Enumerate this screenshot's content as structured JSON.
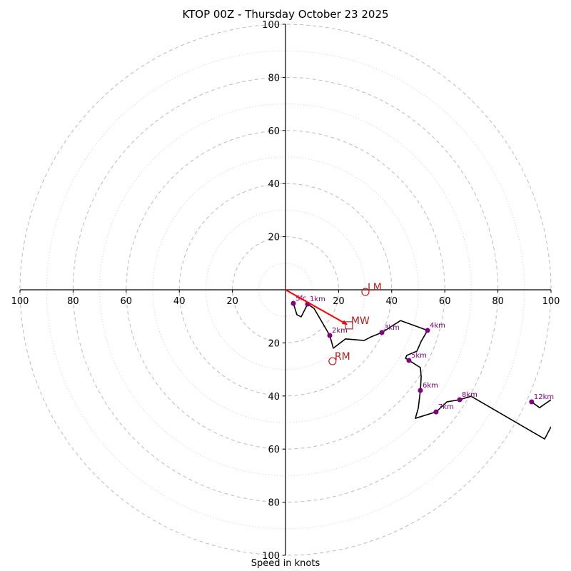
{
  "chart_data": {
    "type": "line",
    "title": "KTOP 00Z - Thursday October 23 2025",
    "xlabel": "Speed in knots",
    "ylabel": "",
    "xlim": [
      -100,
      100
    ],
    "ylim": [
      -100,
      100
    ],
    "grid": true,
    "rings_major": [
      20,
      40,
      60,
      80,
      100
    ],
    "rings_minor": [
      10,
      30,
      50,
      70,
      90
    ],
    "x_ticks": [
      {
        "v": -100,
        "label": "100"
      },
      {
        "v": -80,
        "label": "80"
      },
      {
        "v": -60,
        "label": "60"
      },
      {
        "v": -40,
        "label": "40"
      },
      {
        "v": -20,
        "label": "20"
      },
      {
        "v": 20,
        "label": "20"
      },
      {
        "v": 40,
        "label": "40"
      },
      {
        "v": 60,
        "label": "60"
      },
      {
        "v": 80,
        "label": "80"
      },
      {
        "v": 100,
        "label": "100"
      }
    ],
    "y_ticks": [
      {
        "v": 100,
        "label": "100"
      },
      {
        "v": 80,
        "label": "80"
      },
      {
        "v": 60,
        "label": "60"
      },
      {
        "v": 40,
        "label": "40"
      },
      {
        "v": 20,
        "label": "20"
      },
      {
        "v": -20,
        "label": "20"
      },
      {
        "v": -40,
        "label": "40"
      },
      {
        "v": -60,
        "label": "60"
      },
      {
        "v": -80,
        "label": "80"
      },
      {
        "v": -100,
        "label": "100"
      }
    ],
    "hodograph": {
      "u": [
        2.96,
        4.3,
        5.9,
        8.33,
        10.75,
        16.67,
        18.0,
        22.6,
        29.6,
        32.3,
        36.3,
        43.3,
        53.5,
        51.1,
        49.5,
        45.7,
        45.2,
        46.5,
        50.8,
        51.1,
        50.8,
        50.0,
        48.9,
        56.7,
        59.7,
        60.8,
        65.6,
        69.9,
        97.6,
        100.0
      ],
      "v": [
        -5.11,
        -9.4,
        -10.2,
        -5.38,
        -7.0,
        -17.2,
        -22.0,
        -18.5,
        -19.1,
        -17.7,
        -16.1,
        -11.6,
        -15.3,
        -19.4,
        -23.1,
        -24.7,
        -25.8,
        -26.6,
        -29.3,
        -32.8,
        -37.9,
        -44.6,
        -48.4,
        -46.0,
        -43.3,
        -42.2,
        -41.4,
        -40.1,
        -56.2,
        -51.6
      ]
    },
    "hodograph_upper": {
      "u": [
        92.7,
        95.7,
        100.0
      ],
      "v": [
        -42.2,
        -44.4,
        -41.4
      ]
    },
    "height_markers": [
      {
        "label": "Sfc",
        "u": 2.96,
        "v": -5.11
      },
      {
        "label": "1km",
        "u": 8.33,
        "v": -5.38
      },
      {
        "label": "2km",
        "u": 16.67,
        "v": -17.2
      },
      {
        "label": "3km",
        "u": 36.3,
        "v": -16.1
      },
      {
        "label": "4km",
        "u": 53.5,
        "v": -15.3
      },
      {
        "label": "5km",
        "u": 46.5,
        "v": -26.6
      },
      {
        "label": "6km",
        "u": 50.8,
        "v": -37.9
      },
      {
        "label": "7km",
        "u": 56.7,
        "v": -46.0
      },
      {
        "label": "8km",
        "u": 65.6,
        "v": -41.4
      },
      {
        "label": "12km",
        "u": 92.7,
        "v": -42.2
      }
    ],
    "storm_motion": {
      "mean_wind": {
        "label": "MW",
        "u": 23.9,
        "v": -13.4
      },
      "left_mover": {
        "label": "LM",
        "u": 30.1,
        "v": -0.8
      },
      "right_mover": {
        "label": "RM",
        "u": 17.7,
        "v": -26.9
      }
    },
    "colors": {
      "hodograph": "#000000",
      "markers": "#800080",
      "storm_motion": "#b22222",
      "shear_vector": "#ff0000",
      "grid_major": "#bbbbbb",
      "grid_minor": "#cccccc"
    }
  }
}
